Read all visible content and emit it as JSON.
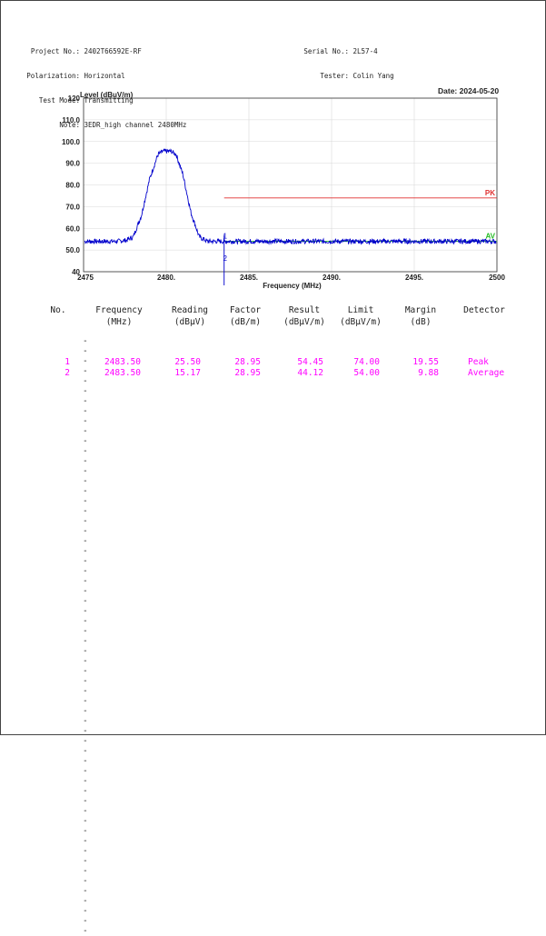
{
  "header": {
    "left": [
      {
        "label": "Project No.:",
        "value": "2402T66592E-RF"
      },
      {
        "label": "Polarization:",
        "value": "Horizontal"
      },
      {
        "label": "Test Mode:",
        "value": "Transmitting"
      },
      {
        "label": "Note:",
        "value": "3EDR_high channel 2480MHz"
      }
    ],
    "right": [
      {
        "label": "Serial No.:",
        "value": "2L57-4"
      },
      {
        "label": "Tester:",
        "value": "Colin Yang"
      }
    ],
    "date": "Date: 2024-05-20"
  },
  "chart_data": {
    "type": "line",
    "xlabel": "Frequency (MHz)",
    "ylabel": "Level (dBuV/m)",
    "xlim": [
      2475,
      2500
    ],
    "ylim": [
      40,
      120
    ],
    "xticks": [
      2475,
      2480,
      2485,
      2490,
      2495,
      2500
    ],
    "xtick_labels": [
      "2475",
      "2480.",
      "2485.",
      "2490.",
      "2495.",
      "2500"
    ],
    "yticks": [
      40,
      50,
      60,
      70,
      80,
      90,
      100,
      110,
      120
    ],
    "ytick_labels": [
      "40",
      "50.0",
      "60.0",
      "70.0",
      "80.0",
      "90.0",
      "100.0",
      "110.0",
      "120"
    ],
    "grid": true,
    "series": [
      {
        "name": "",
        "color": "#0000cc",
        "x": [
          2475,
          2476,
          2477,
          2477.6,
          2478,
          2478.5,
          2479,
          2479.5,
          2479.8,
          2480,
          2480.3,
          2480.6,
          2481,
          2481.5,
          2482,
          2482.5,
          2485,
          2490,
          2495,
          2500
        ],
        "y": [
          54,
          54,
          54,
          54.5,
          56,
          66,
          83,
          94,
          95.5,
          95.5,
          95.5,
          94,
          85,
          67,
          56,
          54,
          54,
          54,
          54,
          54
        ]
      }
    ],
    "limit_lines": [
      {
        "name": "PK",
        "value": 74,
        "x_start": 2483.5,
        "color": "#e03030"
      },
      {
        "name": "AV",
        "value": 54,
        "x_start": 2483.5,
        "color": "#22bb22"
      }
    ],
    "markers": [
      {
        "label": "1",
        "x": 2483.5,
        "y": 54.45
      },
      {
        "label": "2",
        "x": 2483.5,
        "y": 44.12
      }
    ]
  },
  "table": {
    "headers": [
      [
        "No.",
        ""
      ],
      [
        "Frequency",
        "(MHz)"
      ],
      [
        "Reading",
        "(dBμV)"
      ],
      [
        "Factor",
        "(dB/m)"
      ],
      [
        "Result",
        "(dBμV/m)"
      ],
      [
        "Limit",
        "(dBμV/m)"
      ],
      [
        "Margin",
        "(dB)"
      ],
      [
        "Detector",
        ""
      ]
    ],
    "divider": "------------------------------------------------------------",
    "rows": [
      [
        "1",
        "2483.50",
        "25.50",
        "28.95",
        "54.45",
        "74.00",
        "19.55",
        "Peak"
      ],
      [
        "2",
        "2483.50",
        "15.17",
        "28.95",
        "44.12",
        "54.00",
        "9.88",
        "Average"
      ]
    ],
    "value_color": "#ff00ff"
  }
}
